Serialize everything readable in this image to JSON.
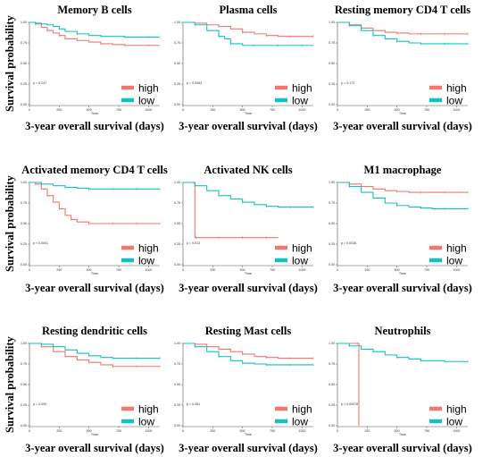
{
  "y_axis_label": "Survival probability",
  "panel_x_label": "3-year overall survival (days)",
  "colors": {
    "high": "#f4766d",
    "low": "#12c2c2"
  },
  "chart_data": [
    {
      "type": "line",
      "title": "Memory B cells",
      "xlabel": "Time",
      "ylabel": "",
      "xlim": [
        0,
        1095
      ],
      "ylim": [
        0,
        1
      ],
      "xticks": [
        "0",
        "250",
        "500",
        "750",
        "1000"
      ],
      "yticks": [
        "0.00",
        "0.25",
        "0.50",
        "0.75",
        "1.00"
      ],
      "pvalue": "p = 0.247",
      "legend": [
        "high",
        "low"
      ],
      "series": [
        {
          "name": "high",
          "x": [
            0,
            50,
            100,
            150,
            200,
            250,
            300,
            400,
            500,
            600,
            700,
            800,
            900,
            1000,
            1095
          ],
          "y": [
            1,
            0.98,
            0.94,
            0.9,
            0.87,
            0.84,
            0.8,
            0.78,
            0.76,
            0.74,
            0.73,
            0.72,
            0.72,
            0.72,
            0.72
          ]
        },
        {
          "name": "low",
          "x": [
            0,
            50,
            100,
            150,
            200,
            250,
            300,
            400,
            500,
            600,
            700,
            800,
            900,
            1000,
            1095
          ],
          "y": [
            1,
            0.99,
            0.98,
            0.97,
            0.95,
            0.92,
            0.89,
            0.86,
            0.84,
            0.83,
            0.83,
            0.82,
            0.82,
            0.82,
            0.82
          ]
        }
      ]
    },
    {
      "type": "line",
      "title": "Plasma cells",
      "xlabel": "Time",
      "ylabel": "",
      "xlim": [
        0,
        1095
      ],
      "ylim": [
        0,
        1
      ],
      "xticks": [
        "0",
        "250",
        "500",
        "750",
        "1000"
      ],
      "yticks": [
        "0.00",
        "0.25",
        "0.50",
        "0.75",
        "1.00"
      ],
      "pvalue": "p = 0.0063",
      "legend": [
        "high",
        "low"
      ],
      "series": [
        {
          "name": "high",
          "x": [
            0,
            100,
            200,
            300,
            400,
            500,
            600,
            700,
            800,
            900,
            1000,
            1095
          ],
          "y": [
            1,
            0.99,
            0.97,
            0.95,
            0.92,
            0.88,
            0.86,
            0.84,
            0.83,
            0.83,
            0.83,
            0.83
          ]
        },
        {
          "name": "low",
          "x": [
            0,
            100,
            200,
            300,
            350,
            400,
            500,
            600,
            700,
            800,
            900,
            1000,
            1095
          ],
          "y": [
            1,
            0.97,
            0.9,
            0.83,
            0.8,
            0.74,
            0.72,
            0.72,
            0.72,
            0.72,
            0.72,
            0.72,
            0.72
          ]
        }
      ]
    },
    {
      "type": "line",
      "title": "Resting memory CD4 T cells",
      "xlabel": "Time",
      "ylabel": "",
      "xlim": [
        0,
        1095
      ],
      "ylim": [
        0,
        1
      ],
      "xticks": [
        "0",
        "250",
        "500",
        "750",
        "1000"
      ],
      "yticks": [
        "0.00",
        "0.25",
        "0.50",
        "0.75",
        "1.00"
      ],
      "pvalue": "p = 0.172",
      "legend": [
        "high",
        "low"
      ],
      "series": [
        {
          "name": "high",
          "x": [
            0,
            100,
            200,
            300,
            400,
            500,
            600,
            700,
            800,
            900,
            1000,
            1095
          ],
          "y": [
            1,
            0.97,
            0.93,
            0.9,
            0.88,
            0.87,
            0.86,
            0.86,
            0.86,
            0.86,
            0.86,
            0.86
          ]
        },
        {
          "name": "low",
          "x": [
            0,
            100,
            200,
            300,
            400,
            500,
            600,
            700,
            800,
            900,
            1000,
            1095
          ],
          "y": [
            1,
            0.96,
            0.9,
            0.84,
            0.8,
            0.77,
            0.75,
            0.74,
            0.74,
            0.74,
            0.74,
            0.74
          ]
        }
      ]
    },
    {
      "type": "line",
      "title": "Activated memory CD4 T cells",
      "xlabel": "Time",
      "ylabel": "",
      "xlim": [
        0,
        1095
      ],
      "ylim": [
        0,
        1
      ],
      "xticks": [
        "0",
        "250",
        "500",
        "750",
        "1000"
      ],
      "yticks": [
        "0.00",
        "0.25",
        "0.50",
        "0.75",
        "1.00"
      ],
      "pvalue": "p < 0.0001",
      "legend": [
        "high",
        "low"
      ],
      "series": [
        {
          "name": "high",
          "x": [
            0,
            50,
            100,
            150,
            200,
            250,
            300,
            350,
            400,
            500,
            600,
            700,
            800,
            900,
            1000,
            1095
          ],
          "y": [
            1,
            0.98,
            0.92,
            0.84,
            0.76,
            0.68,
            0.6,
            0.55,
            0.52,
            0.5,
            0.5,
            0.5,
            0.5,
            0.5,
            0.5,
            0.5
          ]
        },
        {
          "name": "low",
          "x": [
            0,
            100,
            200,
            300,
            400,
            500,
            600,
            700,
            800,
            900,
            1000,
            1095
          ],
          "y": [
            1,
            0.98,
            0.96,
            0.94,
            0.93,
            0.92,
            0.92,
            0.92,
            0.92,
            0.92,
            0.92,
            0.92
          ]
        }
      ]
    },
    {
      "type": "line",
      "title": "Activated NK cells",
      "xlabel": "Time",
      "ylabel": "",
      "xlim": [
        0,
        1095
      ],
      "ylim": [
        0,
        1
      ],
      "xticks": [
        "0",
        "250",
        "500",
        "750",
        "1000"
      ],
      "yticks": [
        "0.00",
        "0.25",
        "0.50",
        "0.75",
        "1.00"
      ],
      "pvalue": "p = 0.013",
      "legend": [
        "high",
        "low"
      ],
      "series": [
        {
          "name": "high",
          "x": [
            0,
            90,
            100,
            110,
            200,
            300,
            400,
            500,
            600,
            700,
            800
          ],
          "y": [
            1,
            1,
            0.33,
            0.33,
            0.33,
            0.33,
            0.33,
            0.33,
            0.33,
            0.33,
            0.33
          ]
        },
        {
          "name": "low",
          "x": [
            0,
            100,
            200,
            300,
            400,
            500,
            600,
            700,
            800,
            900,
            1000,
            1095
          ],
          "y": [
            1,
            0.96,
            0.9,
            0.84,
            0.8,
            0.76,
            0.73,
            0.71,
            0.7,
            0.7,
            0.7,
            0.7
          ]
        }
      ]
    },
    {
      "type": "line",
      "title": "M1 macrophage",
      "xlabel": "Time",
      "ylabel": "",
      "xlim": [
        0,
        1095
      ],
      "ylim": [
        0,
        1
      ],
      "xticks": [
        "0",
        "250",
        "500",
        "750",
        "1000"
      ],
      "yticks": [
        "0.00",
        "0.25",
        "0.50",
        "0.75",
        "1.00"
      ],
      "pvalue": "p = 0.0036",
      "legend": [
        "high",
        "low"
      ],
      "series": [
        {
          "name": "high",
          "x": [
            0,
            100,
            200,
            300,
            400,
            500,
            600,
            700,
            800,
            900,
            1000,
            1095
          ],
          "y": [
            1,
            0.98,
            0.95,
            0.92,
            0.9,
            0.89,
            0.88,
            0.88,
            0.88,
            0.88,
            0.88,
            0.88
          ]
        },
        {
          "name": "low",
          "x": [
            0,
            100,
            200,
            300,
            400,
            500,
            600,
            700,
            800,
            900,
            1000,
            1095
          ],
          "y": [
            1,
            0.95,
            0.88,
            0.81,
            0.75,
            0.72,
            0.7,
            0.69,
            0.68,
            0.68,
            0.68,
            0.68
          ]
        }
      ]
    },
    {
      "type": "line",
      "title": "Resting dendritic cells",
      "xlabel": "Time",
      "ylabel": "",
      "xlim": [
        0,
        1095
      ],
      "ylim": [
        0,
        1
      ],
      "xticks": [
        "0",
        "250",
        "500",
        "750",
        "1000"
      ],
      "yticks": [
        "0.00",
        "0.25",
        "0.50",
        "0.75",
        "1.00"
      ],
      "pvalue": "p = 0.095",
      "legend": [
        "high",
        "low"
      ],
      "series": [
        {
          "name": "high",
          "x": [
            0,
            100,
            200,
            300,
            400,
            500,
            600,
            700,
            800,
            900,
            1000,
            1095
          ],
          "y": [
            1,
            0.96,
            0.9,
            0.84,
            0.8,
            0.77,
            0.74,
            0.72,
            0.72,
            0.72,
            0.72,
            0.72
          ]
        },
        {
          "name": "low",
          "x": [
            0,
            100,
            200,
            300,
            400,
            500,
            600,
            700,
            800,
            900,
            1000,
            1095
          ],
          "y": [
            1,
            0.99,
            0.96,
            0.92,
            0.88,
            0.85,
            0.83,
            0.82,
            0.82,
            0.82,
            0.82,
            0.82
          ]
        }
      ]
    },
    {
      "type": "line",
      "title": "Resting Mast cells",
      "xlabel": "Time",
      "ylabel": "",
      "xlim": [
        0,
        1095
      ],
      "ylim": [
        0,
        1
      ],
      "xticks": [
        "0",
        "250",
        "500",
        "750",
        "1000"
      ],
      "yticks": [
        "0.00",
        "0.25",
        "0.50",
        "0.75",
        "1.00"
      ],
      "pvalue": "p = 0.081",
      "legend": [
        "high",
        "low"
      ],
      "series": [
        {
          "name": "high",
          "x": [
            0,
            100,
            200,
            300,
            400,
            500,
            600,
            700,
            800,
            900,
            1000,
            1095
          ],
          "y": [
            1,
            0.99,
            0.96,
            0.93,
            0.9,
            0.87,
            0.84,
            0.83,
            0.82,
            0.82,
            0.82,
            0.82
          ]
        },
        {
          "name": "low",
          "x": [
            0,
            100,
            200,
            300,
            400,
            500,
            600,
            700,
            800,
            900,
            1000,
            1095
          ],
          "y": [
            1,
            0.96,
            0.9,
            0.84,
            0.79,
            0.76,
            0.75,
            0.74,
            0.74,
            0.74,
            0.74,
            0.74
          ]
        }
      ]
    },
    {
      "type": "line",
      "title": "Neutrophils",
      "xlabel": "Time",
      "ylabel": "",
      "xlim": [
        0,
        1095
      ],
      "ylim": [
        0,
        1
      ],
      "xticks": [
        "0",
        "250",
        "500",
        "750",
        "1000"
      ],
      "yticks": [
        "0.00",
        "0.25",
        "0.50",
        "0.75",
        "1.00"
      ],
      "pvalue": "p = 0.00078",
      "legend": [
        "high",
        "low"
      ],
      "series": [
        {
          "name": "high",
          "x": [
            0,
            170,
            180
          ],
          "y": [
            1,
            1,
            0
          ]
        },
        {
          "name": "low",
          "x": [
            0,
            100,
            200,
            300,
            400,
            500,
            600,
            700,
            800,
            900,
            1000,
            1095
          ],
          "y": [
            1,
            0.97,
            0.93,
            0.9,
            0.86,
            0.83,
            0.81,
            0.79,
            0.79,
            0.78,
            0.78,
            0.78
          ]
        }
      ]
    }
  ]
}
